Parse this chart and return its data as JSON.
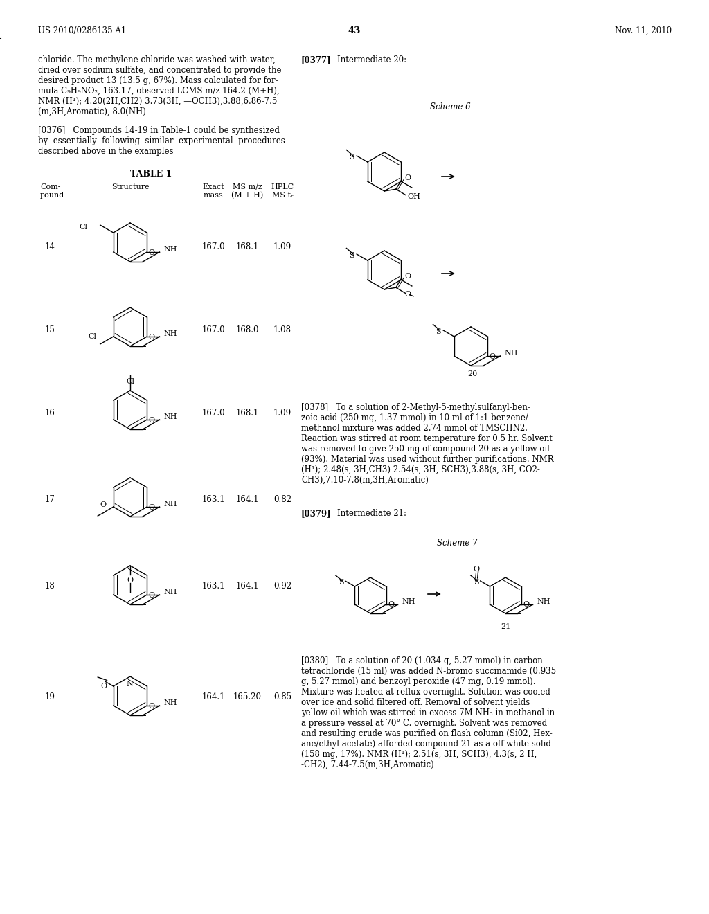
{
  "page_number": "43",
  "patent_number": "US 2010/0286135 A1",
  "patent_date": "Nov. 11, 2010",
  "bg": "#ffffff"
}
